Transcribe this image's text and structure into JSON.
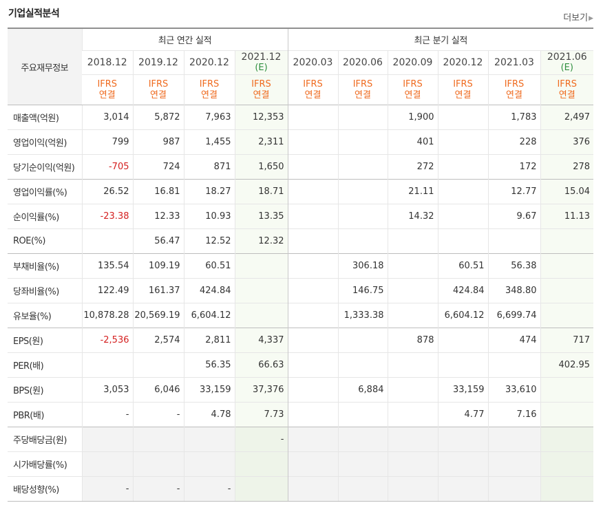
{
  "title": "기업실적분석",
  "more": "더보기",
  "corner_label": "주요재무정보",
  "groups": {
    "annual": "최근 연간 실적",
    "quarter": "최근 분기 실적"
  },
  "periods": [
    {
      "label": "2018.12",
      "est": ""
    },
    {
      "label": "2019.12",
      "est": ""
    },
    {
      "label": "2020.12",
      "est": ""
    },
    {
      "label": "2021.12",
      "est": "(E)"
    },
    {
      "label": "2020.03",
      "est": ""
    },
    {
      "label": "2020.06",
      "est": ""
    },
    {
      "label": "2020.09",
      "est": ""
    },
    {
      "label": "2020.12",
      "est": ""
    },
    {
      "label": "2021.03",
      "est": ""
    },
    {
      "label": "2021.06",
      "est": "(E)"
    }
  ],
  "ifrs": {
    "line1": "IFRS",
    "line2": "연결"
  },
  "rows": [
    {
      "label": "매출액(억원)",
      "values": [
        "3,014",
        "5,872",
        "7,963",
        "12,353",
        "",
        "",
        "1,900",
        "",
        "1,783",
        "2,497"
      ]
    },
    {
      "label": "영업이익(억원)",
      "values": [
        "799",
        "987",
        "1,455",
        "2,311",
        "",
        "",
        "401",
        "",
        "228",
        "376"
      ]
    },
    {
      "label": "당기순이익(억원)",
      "values": [
        "-705",
        "724",
        "871",
        "1,650",
        "",
        "",
        "272",
        "",
        "172",
        "278"
      ]
    },
    {
      "label": "영업이익률(%)",
      "values": [
        "26.52",
        "16.81",
        "18.27",
        "18.71",
        "",
        "",
        "21.11",
        "",
        "12.77",
        "15.04"
      ]
    },
    {
      "label": "순이익률(%)",
      "values": [
        "-23.38",
        "12.33",
        "10.93",
        "13.35",
        "",
        "",
        "14.32",
        "",
        "9.67",
        "11.13"
      ]
    },
    {
      "label": "ROE(%)",
      "values": [
        "",
        "56.47",
        "12.52",
        "12.32",
        "",
        "",
        "",
        "",
        "",
        ""
      ]
    },
    {
      "label": "부채비율(%)",
      "values": [
        "135.54",
        "109.19",
        "60.51",
        "",
        "",
        "306.18",
        "",
        "60.51",
        "56.38",
        ""
      ]
    },
    {
      "label": "당좌비율(%)",
      "values": [
        "122.49",
        "161.37",
        "424.84",
        "",
        "",
        "146.75",
        "",
        "424.84",
        "348.80",
        ""
      ]
    },
    {
      "label": "유보율(%)",
      "values": [
        "10,878.28",
        "20,569.19",
        "6,604.12",
        "",
        "",
        "1,333.38",
        "",
        "6,604.12",
        "6,699.74",
        ""
      ]
    },
    {
      "label": "EPS(원)",
      "values": [
        "-2,536",
        "2,574",
        "2,811",
        "4,337",
        "",
        "",
        "878",
        "",
        "474",
        "717"
      ]
    },
    {
      "label": "PER(배)",
      "values": [
        "",
        "",
        "56.35",
        "66.63",
        "",
        "",
        "",
        "",
        "",
        "402.95"
      ]
    },
    {
      "label": "BPS(원)",
      "values": [
        "3,053",
        "6,046",
        "33,159",
        "37,376",
        "",
        "6,884",
        "",
        "33,159",
        "33,610",
        ""
      ]
    },
    {
      "label": "PBR(배)",
      "values": [
        "-",
        "-",
        "4.78",
        "7.73",
        "",
        "",
        "",
        "4.77",
        "7.16",
        ""
      ]
    },
    {
      "label": "주당배당금(원)",
      "values": [
        "",
        "",
        "",
        "-",
        "",
        "",
        "",
        "",
        "",
        ""
      ]
    },
    {
      "label": "시가배당률(%)",
      "values": [
        "",
        "",
        "",
        "",
        "",
        "",
        "",
        "",
        "",
        ""
      ]
    },
    {
      "label": "배당성향(%)",
      "values": [
        "-",
        "-",
        "-",
        "",
        "",
        "",
        "",
        "",
        "",
        ""
      ]
    }
  ],
  "colors": {
    "ifrs": "#ef6a1e",
    "estimate": "#2f8f3f",
    "negative": "#d42020",
    "estimate_bg": "#f7fbf3"
  }
}
